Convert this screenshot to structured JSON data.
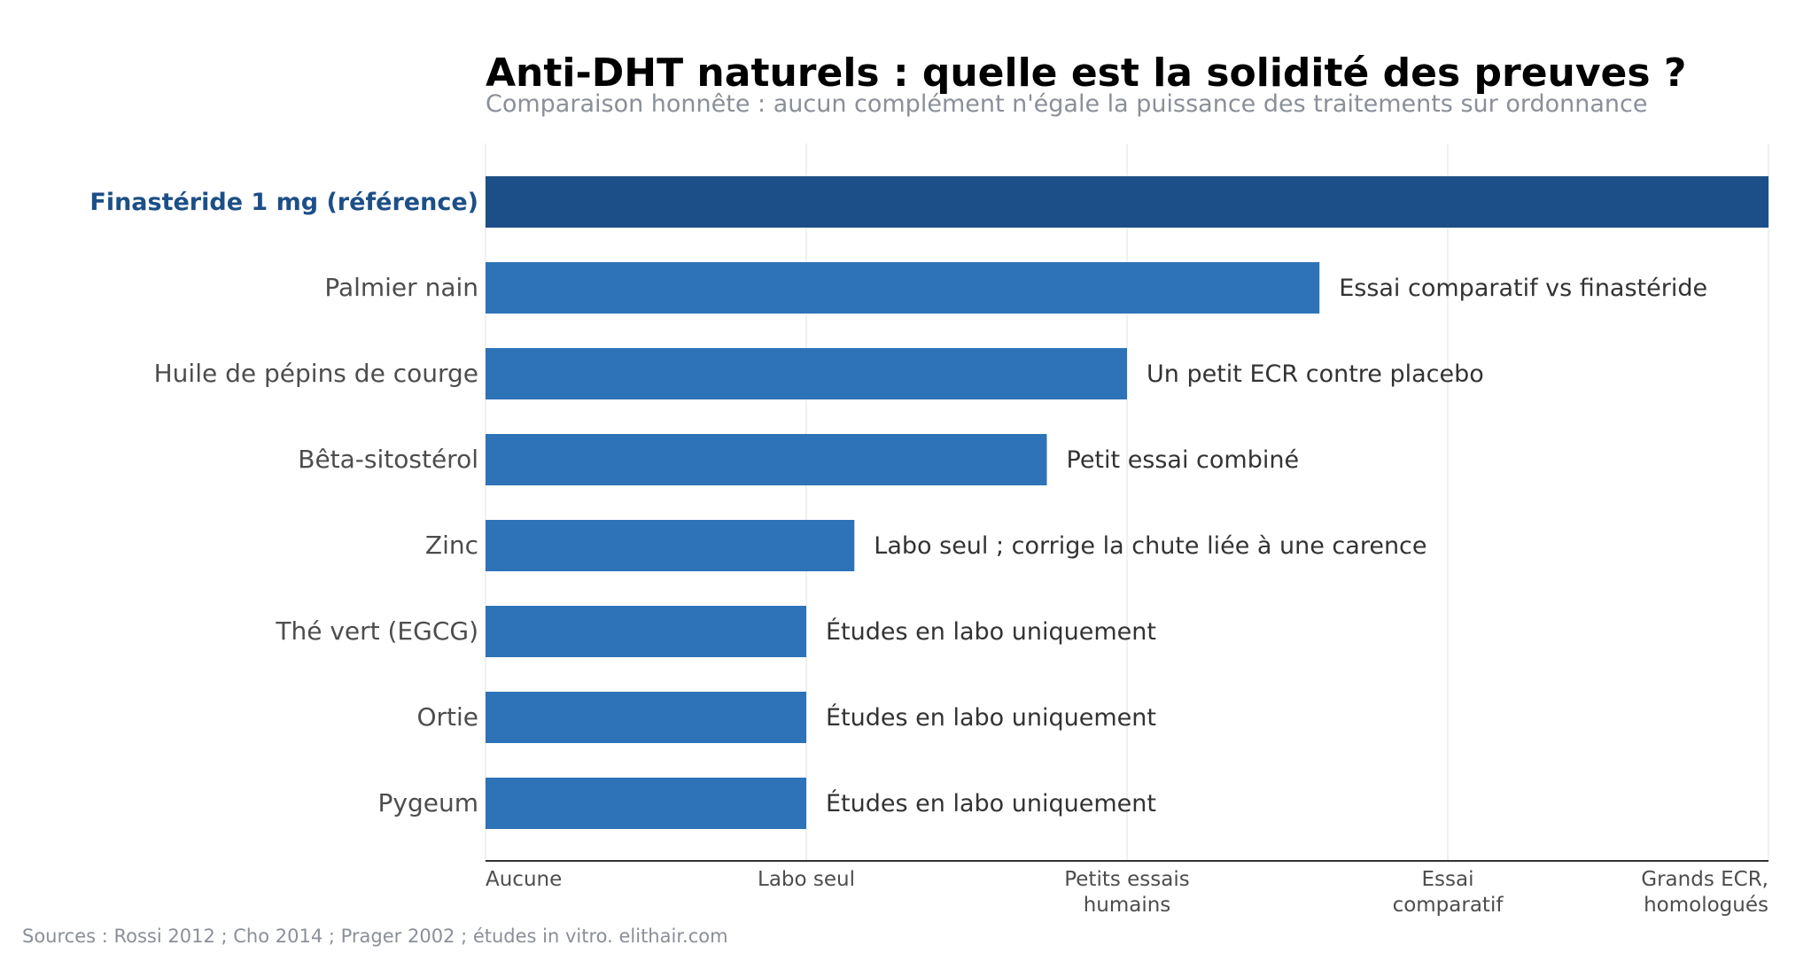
{
  "chart_data": {
    "type": "bar",
    "orientation": "horizontal",
    "title": "Anti-DHT naturels : quelle est la solidité des preuves ?",
    "subtitle": "Comparaison honnête : aucun complément n'égale la puissance des traitements sur ordonnance",
    "categories": [
      "Finastéride 1 mg (référence)",
      "Palmier nain",
      "Huile de pépins de courge",
      "Bêta-sitostérol",
      "Zinc",
      "Thé vert (EGCG)",
      "Ortie",
      "Pygeum"
    ],
    "values": [
      4.0,
      2.6,
      2.0,
      1.75,
      1.15,
      1.0,
      1.0,
      1.0
    ],
    "annotations": [
      "",
      "Essai comparatif vs finastéride",
      "Un petit ECR contre placebo",
      "Petit essai combiné",
      "Labo seul ; corrige la chute liée à une carence",
      "Études en labo uniquement",
      "Études en labo uniquement",
      "Études en labo uniquement"
    ],
    "highlight_index": 0,
    "x_ticks": [
      {
        "value": 0,
        "label": [
          "Aucune"
        ]
      },
      {
        "value": 1,
        "label": [
          "Labo seul"
        ]
      },
      {
        "value": 2,
        "label": [
          "Petits essais",
          "humains"
        ]
      },
      {
        "value": 3,
        "label": [
          "Essai",
          "comparatif"
        ]
      },
      {
        "value": 4,
        "label": [
          "Grands ECR,",
          "homologués"
        ]
      }
    ],
    "xlim": [
      0,
      4
    ],
    "grid": "vertical",
    "colors": {
      "bar": "#2e73b8",
      "highlight_bar": "#1c4f87",
      "highlight_label": "#1c4f87",
      "label": "#4d4d4d",
      "annotation": "#333333",
      "grid": "#ebebeb",
      "axis": "#333333",
      "subtitle": "#8a8f99",
      "source": "#8a8f99",
      "title": "#000000"
    },
    "source": "Sources : Rossi 2012 ; Cho 2014 ; Prager 2002 ; études in vitro. elithair.com"
  }
}
